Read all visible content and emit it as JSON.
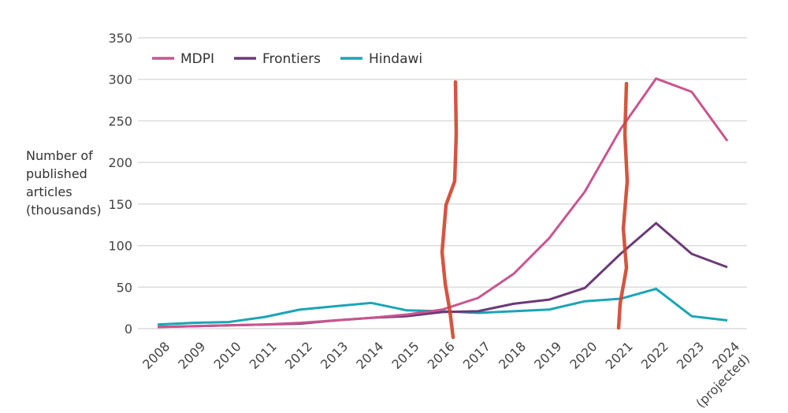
{
  "chart_data": {
    "type": "line",
    "title": "",
    "xlabel": "",
    "ylabel": "Number of published articles (thousands)",
    "ylabel_lines": [
      "Number of",
      "published",
      "articles",
      "(thousands)"
    ],
    "x": [
      "2008",
      "2009",
      "2010",
      "2011",
      "2012",
      "2013",
      "2014",
      "2015",
      "2016",
      "2017",
      "2018",
      "2019",
      "2020",
      "2021",
      "2022",
      "2023",
      "2024"
    ],
    "x_tick_labels": [
      "2008",
      "2009",
      "2010",
      "2011",
      "2012",
      "2013",
      "2014",
      "2015",
      "2016",
      "2017",
      "2018",
      "2019",
      "2020",
      "2021",
      "2022",
      "2023",
      "2024\n(projected)"
    ],
    "ylim": [
      0,
      350
    ],
    "yticks": [
      0,
      50,
      100,
      150,
      200,
      250,
      300,
      350
    ],
    "grid": true,
    "legend_position": "top-left",
    "series": [
      {
        "name": "MDPI",
        "color": "#c9558f",
        "values": [
          2,
          3,
          4,
          5,
          7,
          10,
          13,
          17,
          23,
          37,
          66,
          109,
          165,
          240,
          301,
          285,
          226
        ]
      },
      {
        "name": "Frontiers",
        "color": "#6b3a77",
        "values": [
          2,
          3,
          4,
          5,
          6,
          10,
          13,
          15,
          20,
          21,
          30,
          35,
          49,
          90,
          127,
          90,
          74
        ]
      },
      {
        "name": "Hindawi",
        "color": "#1aa5b5",
        "values": [
          5,
          7,
          8,
          14,
          23,
          27,
          31,
          22,
          21,
          19,
          21,
          23,
          33,
          36,
          48,
          15,
          10
        ]
      }
    ],
    "annotations": [
      {
        "type": "hand-drawn red vertical mark",
        "color": "#d0432b",
        "x_between": [
          "2016",
          "2017"
        ]
      },
      {
        "type": "hand-drawn red vertical mark",
        "color": "#d0432b",
        "x": "2021"
      }
    ]
  }
}
